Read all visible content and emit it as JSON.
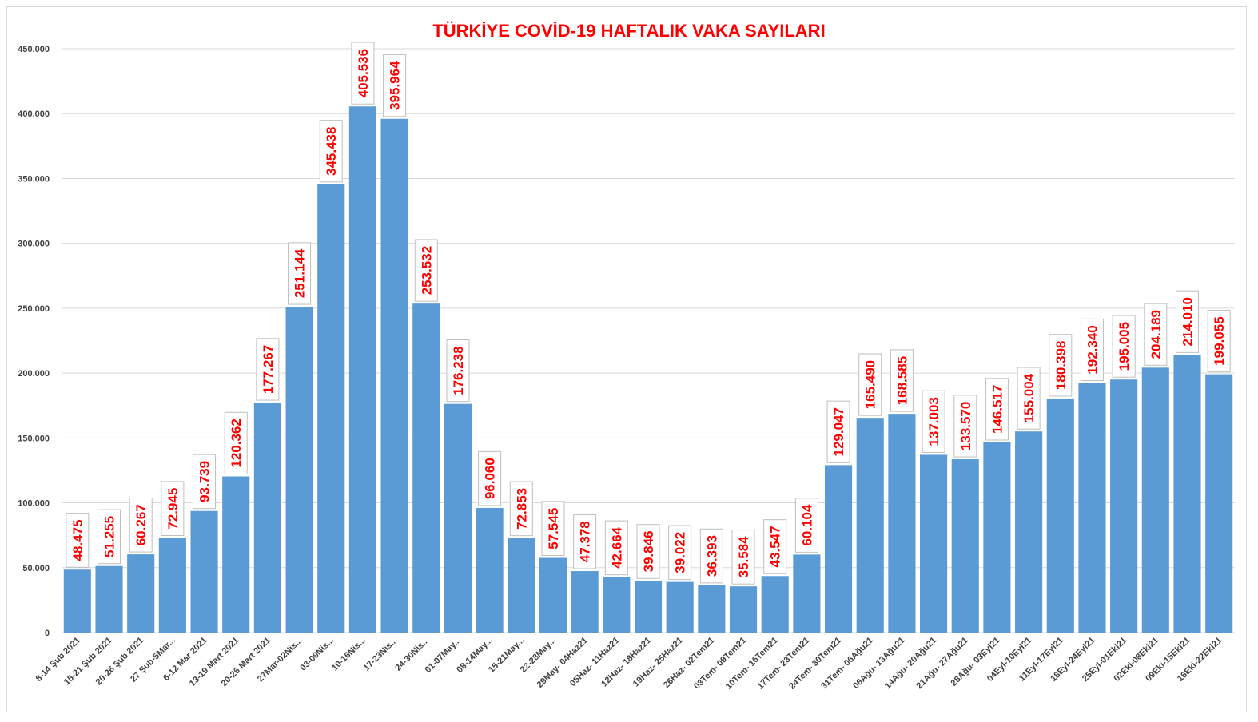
{
  "chart_data": {
    "type": "bar",
    "title": "TÜRKİYE COVİD-19 HAFTALIK VAKA SAYILARI",
    "xlabel": "",
    "ylabel": "",
    "ylim": [
      0,
      450000
    ],
    "yticks": [
      0,
      50000,
      100000,
      150000,
      200000,
      250000,
      300000,
      350000,
      400000,
      450000
    ],
    "ytick_labels": [
      "0",
      "50.000",
      "100.000",
      "150.000",
      "200.000",
      "250.000",
      "300.000",
      "350.000",
      "400.000",
      "450.000"
    ],
    "grid": true,
    "bar_color": "#5b9bd5",
    "label_color": "#ff0000",
    "categories": [
      "8-14 Şub 2021",
      "15-21 Şub 2021",
      "20-26 Şub 2021",
      "27 Şub-5Mar...",
      "6-12 Mar 2021",
      "13-19 Mart 2021",
      "20-26 Mart 2021",
      "27Mar-02Nis...",
      "03-09Nis...",
      "10-16Nis...",
      "17-23Nis...",
      "24-30Nis...",
      "01-07May...",
      "08-14May...",
      "15-21May...",
      "22-28May...",
      "29May- 04Haz21",
      "05Haz- 11Haz21",
      "12Haz- 18Haz21",
      "19Haz- 25Haz21",
      "26Haz- 02Tem21",
      "03Tem- 09Tem21",
      "10Tem- 16Tem21",
      "17Tem- 23Tem21",
      "24Tem- 30Tem21",
      "31Tem- 06Ağu21",
      "06Ağu- 13Ağu21",
      "14Ağu- 20Ağu21",
      "21Ağu- 27Ağu21",
      "28Ağu- 03Eyl21",
      "04Eyl-10Eyl21",
      "11Eyl-17Eyl21",
      "18Eyl-24Eyl21",
      "25Eyl-01Eki21",
      "02Eki-08Eki21",
      "09Eki-15Eki21",
      "16Eki-22Eki21"
    ],
    "values": [
      48475,
      51255,
      60267,
      72945,
      93739,
      120362,
      177267,
      251144,
      345438,
      405536,
      395964,
      253532,
      176238,
      96060,
      72853,
      57545,
      47378,
      42664,
      39846,
      39022,
      36393,
      35584,
      43547,
      60104,
      129047,
      165490,
      168585,
      137003,
      133570,
      146517,
      155004,
      180398,
      192340,
      195005,
      204189,
      214010,
      199055
    ],
    "value_labels": [
      "48.475",
      "51.255",
      "60.267",
      "72.945",
      "93.739",
      "120.362",
      "177.267",
      "251.144",
      "345.438",
      "405.536",
      "395.964",
      "253.532",
      "176.238",
      "96.060",
      "72.853",
      "57.545",
      "47.378",
      "42.664",
      "39.846",
      "39.022",
      "36.393",
      "35.584",
      "43.547",
      "60.104",
      "129.047",
      "165.490",
      "168.585",
      "137.003",
      "133.570",
      "146.517",
      "155.004",
      "180.398",
      "192.340",
      "195.005",
      "204.189",
      "214.010",
      "199.055"
    ]
  }
}
